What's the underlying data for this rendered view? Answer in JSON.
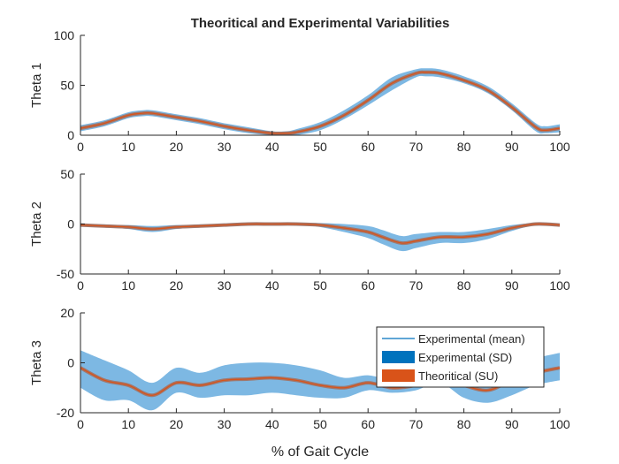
{
  "figure": {
    "title": "Theoritical and Experimental Variabilities",
    "xlabel": "% of Gait Cycle"
  },
  "colors": {
    "band": "#7db8e3",
    "mean": "#0072bd",
    "theoretical": "#d95319",
    "axis": "#262626"
  },
  "legend": {
    "location": "inside-right",
    "entries": [
      {
        "label": "Experimental (mean)",
        "kind": "line",
        "color": "#0072bd"
      },
      {
        "label": "Experimental (SD)",
        "kind": "patch",
        "color": "#0072bd"
      },
      {
        "label": "Theoritical (SU)",
        "kind": "patch",
        "color": "#d95319"
      }
    ]
  },
  "chart_data": [
    {
      "type": "area",
      "ylabel": "Theta 1",
      "xlim": [
        0,
        100
      ],
      "ylim": [
        0,
        100
      ],
      "xticks": [
        0,
        10,
        20,
        30,
        40,
        50,
        60,
        70,
        80,
        90,
        100
      ],
      "yticks": [
        0,
        50,
        100
      ],
      "x": [
        0,
        5,
        10,
        13,
        15,
        20,
        25,
        30,
        35,
        40,
        43,
        45,
        50,
        55,
        60,
        65,
        70,
        72,
        75,
        80,
        85,
        90,
        95,
        97,
        100
      ],
      "series": [
        {
          "values": [
            7,
            12,
            20,
            22,
            22,
            18,
            14,
            9,
            5,
            2,
            2,
            3,
            9,
            20,
            35,
            52,
            62,
            63,
            62,
            55,
            45,
            28,
            8,
            5,
            7
          ]
        },
        {
          "values": [
            4,
            9,
            17,
            19,
            19,
            15,
            11,
            6,
            2,
            0,
            0,
            0,
            5,
            16,
            30,
            45,
            58,
            59,
            58,
            52,
            42,
            25,
            4,
            2,
            3
          ]
        },
        {
          "values": [
            10,
            15,
            23,
            25,
            25,
            21,
            17,
            12,
            8,
            4,
            4,
            6,
            13,
            25,
            40,
            58,
            66,
            67,
            66,
            59,
            49,
            32,
            12,
            9,
            11
          ]
        }
      ]
    },
    {
      "type": "area",
      "ylabel": "Theta 2",
      "xlim": [
        0,
        100
      ],
      "ylim": [
        -50,
        50
      ],
      "xticks": [
        0,
        10,
        20,
        30,
        40,
        50,
        60,
        70,
        80,
        90,
        100
      ],
      "yticks": [
        -50,
        0,
        50
      ],
      "x": [
        0,
        5,
        10,
        15,
        20,
        25,
        30,
        35,
        40,
        45,
        50,
        55,
        60,
        63,
        67,
        70,
        75,
        80,
        85,
        90,
        95,
        100
      ],
      "series": [
        {
          "values": [
            -1,
            -2,
            -3,
            -5,
            -3,
            -2,
            -1,
            0,
            0,
            0,
            -1,
            -4,
            -8,
            -13,
            -19,
            -17,
            -13,
            -13,
            -10,
            -4,
            0,
            -1
          ]
        },
        {
          "values": [
            -2,
            -3,
            -5,
            -8,
            -5,
            -3,
            -2,
            -1,
            0,
            0,
            -3,
            -8,
            -14,
            -20,
            -27,
            -24,
            -19,
            -19,
            -15,
            -7,
            -1,
            -1
          ]
        },
        {
          "values": [
            0,
            -1,
            -1,
            -2,
            -1,
            -1,
            0,
            0,
            1,
            1,
            1,
            0,
            -2,
            -6,
            -12,
            -10,
            -8,
            -8,
            -5,
            -1,
            1,
            0
          ]
        }
      ]
    },
    {
      "type": "area",
      "ylabel": "Theta 3",
      "xlim": [
        0,
        100
      ],
      "ylim": [
        -20,
        20
      ],
      "xticks": [
        0,
        10,
        20,
        30,
        40,
        50,
        60,
        70,
        80,
        90,
        100
      ],
      "yticks": [
        -20,
        0,
        20
      ],
      "x": [
        0,
        5,
        10,
        15,
        20,
        25,
        30,
        35,
        40,
        45,
        50,
        55,
        60,
        65,
        70,
        75,
        80,
        85,
        90,
        95,
        100
      ],
      "series": [
        {
          "values": [
            -2,
            -7,
            -9,
            -13,
            -8,
            -9,
            -7,
            -6.5,
            -6,
            -7,
            -9,
            -10,
            -8,
            -10,
            -9,
            -6,
            -9,
            -11,
            -7,
            -4,
            -2
          ]
        },
        {
          "values": [
            -10,
            -15,
            -15,
            -19,
            -12,
            -14,
            -13,
            -13,
            -12,
            -13,
            -14,
            -14,
            -11,
            -12,
            -11,
            -8,
            -14,
            -16,
            -13,
            -9,
            -7
          ]
        },
        {
          "values": [
            5,
            1,
            -3,
            -8,
            -2,
            -4,
            -1,
            0,
            0,
            -1,
            -3,
            -6,
            -5,
            -7,
            -7,
            -3,
            -2,
            -4,
            0,
            2,
            4
          ]
        }
      ]
    }
  ]
}
